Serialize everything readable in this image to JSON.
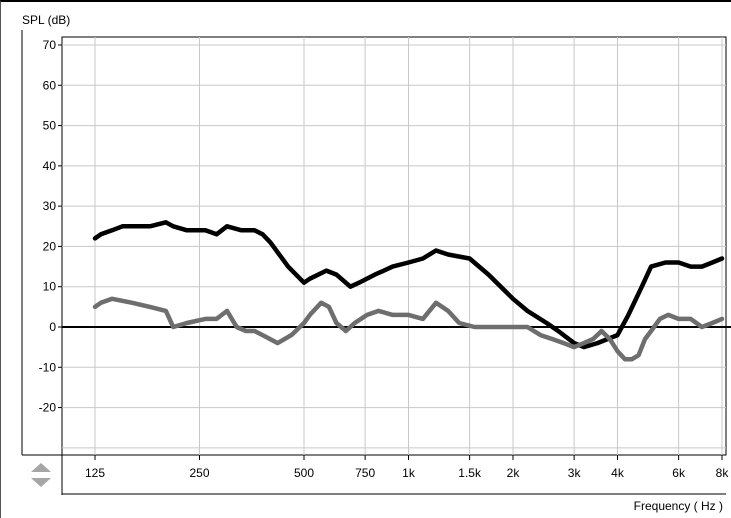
{
  "chart_data": {
    "type": "line",
    "ylabel": "SPL (dB)",
    "xlabel": "Frequency ( Hz )",
    "x_scale": "log",
    "ylim": [
      -30,
      70
    ],
    "xlim": [
      100,
      8000
    ],
    "grid": true,
    "y_ticks": [
      70,
      60,
      50,
      40,
      30,
      20,
      10,
      0,
      -10,
      -20
    ],
    "x_ticks": [
      {
        "value": 125,
        "label": "125"
      },
      {
        "value": 250,
        "label": "250"
      },
      {
        "value": 500,
        "label": "500"
      },
      {
        "value": 750,
        "label": "750"
      },
      {
        "value": 1000,
        "label": "1k"
      },
      {
        "value": 1500,
        "label": "1.5k"
      },
      {
        "value": 2000,
        "label": "2k"
      },
      {
        "value": 3000,
        "label": "3k"
      },
      {
        "value": 4000,
        "label": "4k"
      },
      {
        "value": 6000,
        "label": "6k"
      },
      {
        "value": 8000,
        "label": "8k"
      }
    ],
    "series": [
      {
        "color": "#000000",
        "x": [
          125,
          130,
          140,
          150,
          160,
          180,
          200,
          210,
          230,
          260,
          280,
          300,
          330,
          360,
          380,
          400,
          450,
          500,
          520,
          580,
          620,
          680,
          720,
          800,
          850,
          900,
          1000,
          1100,
          1200,
          1300,
          1500,
          1700,
          2000,
          2200,
          2500,
          2700,
          3000,
          3200,
          3500,
          4000,
          4300,
          4700,
          5000,
          5500,
          6000,
          6500,
          7000,
          7500,
          8000
        ],
        "values": [
          22,
          23,
          24,
          25,
          25,
          25,
          26,
          25,
          24,
          24,
          23,
          25,
          24,
          24,
          23,
          21,
          15,
          11,
          12,
          14,
          13,
          10,
          11,
          13,
          14,
          15,
          16,
          17,
          19,
          18,
          17,
          13,
          7,
          4,
          1,
          -1,
          -4,
          -5,
          -4,
          -2,
          3,
          10,
          15,
          16,
          16,
          15,
          15,
          16,
          17
        ]
      },
      {
        "color": "#6e6e6e",
        "x": [
          125,
          130,
          140,
          160,
          180,
          200,
          210,
          230,
          260,
          280,
          300,
          320,
          340,
          360,
          380,
          420,
          460,
          500,
          520,
          560,
          590,
          620,
          660,
          700,
          760,
          820,
          900,
          1000,
          1100,
          1200,
          1300,
          1400,
          1550,
          1700,
          2000,
          2200,
          2400,
          2600,
          2800,
          3000,
          3200,
          3400,
          3600,
          3800,
          4000,
          4200,
          4400,
          4600,
          4800,
          5000,
          5300,
          5600,
          6000,
          6500,
          7000,
          7500,
          8000
        ],
        "values": [
          5,
          6,
          7,
          6,
          5,
          4,
          0,
          1,
          2,
          2,
          4,
          0,
          -1,
          -1,
          -2,
          -4,
          -2,
          1,
          3,
          6,
          5,
          1,
          -1,
          1,
          3,
          4,
          3,
          3,
          2,
          6,
          4,
          1,
          0,
          0,
          0,
          0,
          -2,
          -3,
          -4,
          -5,
          -4,
          -3,
          -1,
          -3,
          -6,
          -8,
          -8,
          -7,
          -3,
          -1,
          2,
          3,
          2,
          2,
          0,
          1,
          2
        ]
      }
    ]
  }
}
